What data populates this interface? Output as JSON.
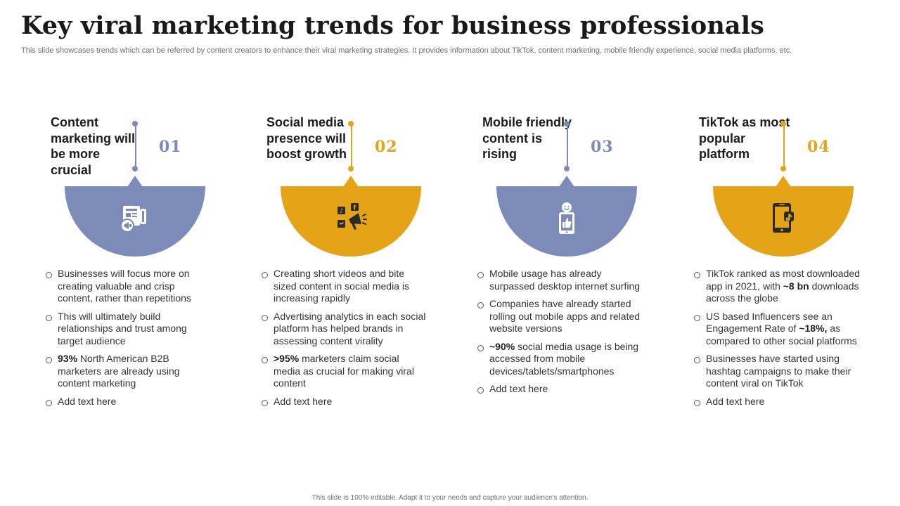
{
  "title": "Key viral marketing trends for business professionals",
  "subtitle": "This slide showcases trends which can be referred by content creators to enhance their viral marketing strategies. It provides information about TikTok, content marketing, mobile friendly experience, social media platforms, etc.",
  "footer": "This slide is 100% editable.  Adapt it to your needs and capture your audience's attention.",
  "colors": {
    "blue": "#7d8bb8",
    "gold": "#e5a418"
  },
  "cards": [
    {
      "number": "01",
      "heading": "Content marketing will be more crucial",
      "icon": "newspaper-megaphone-icon",
      "bullets": [
        {
          "text": "Businesses will focus more on creating valuable and crisp content, rather than repetitions"
        },
        {
          "text": "This will ultimately build relationships and trust among target audience"
        },
        {
          "bold": "93%",
          "text": " North American B2B marketers are already using content marketing"
        },
        {
          "text": "Add text here"
        }
      ]
    },
    {
      "number": "02",
      "heading": "Social media presence will boost growth",
      "icon": "social-media-megaphone-icon",
      "bullets": [
        {
          "text": "Creating short videos and bite sized content in social media is increasing rapidly"
        },
        {
          "text": "Advertising analytics in each social platform has helped brands in assessing content virality"
        },
        {
          "bold": ">95%",
          "text": " marketers claim social media as crucial for making viral content"
        },
        {
          "text": "Add text here"
        }
      ]
    },
    {
      "number": "03",
      "heading": "Mobile friendly content is rising",
      "icon": "mobile-like-icon",
      "bullets": [
        {
          "text": "Mobile usage has already surpassed desktop internet surfing"
        },
        {
          "text": "Companies have already started rolling out mobile apps and related website versions"
        },
        {
          "bold": "~90%",
          "text": " social media usage is being accessed from mobile devices/tablets/smartphones"
        },
        {
          "text": "Add text here"
        }
      ]
    },
    {
      "number": "04",
      "heading": "TikTok as most popular platform",
      "icon": "tiktok-phone-icon",
      "bullets": [
        {
          "pre": "TikTok ranked as most downloaded app in 2021, with ",
          "bold": "~8 bn",
          "text": " downloads across the globe"
        },
        {
          "pre": "US based Influencers see an Engagement Rate of ",
          "bold": "~18%,",
          "text": " as compared to other social platforms"
        },
        {
          "text": "Businesses have started using hashtag campaigns to make their content viral on TikTok"
        },
        {
          "text": "Add text here"
        }
      ]
    }
  ]
}
